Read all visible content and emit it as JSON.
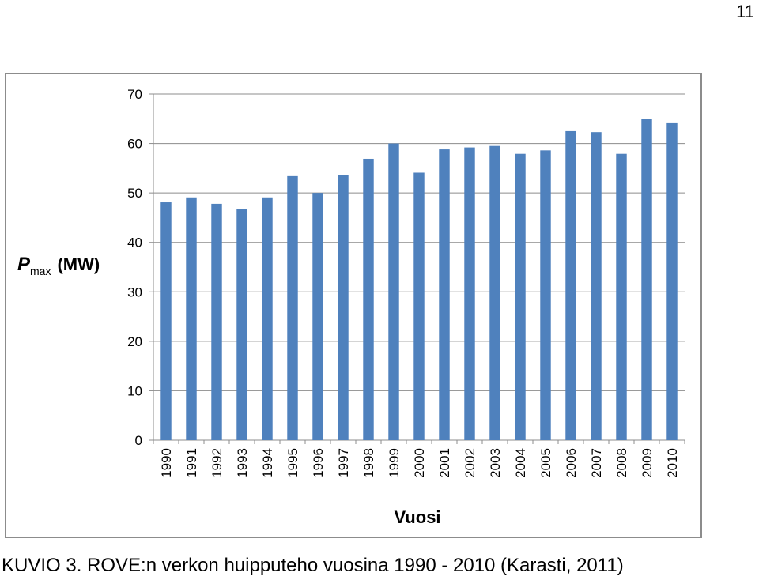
{
  "page_number": "11",
  "caption": "KUVIO 3. ROVE:n verkon huipputeho vuosina 1990 - 2010 (Karasti, 2011)",
  "chart_data": {
    "type": "bar",
    "title": "",
    "ylabel_main": "P",
    "ylabel_sub": "max",
    "ylabel_unit": "(MW)",
    "xlabel": "Vuosi",
    "ylim": [
      0,
      70
    ],
    "yticks": [
      0,
      10,
      20,
      30,
      40,
      50,
      60,
      70
    ],
    "grid": true,
    "legend": "none",
    "bar_color": "#4f81bd",
    "categories": [
      "1990",
      "1991",
      "1992",
      "1993",
      "1994",
      "1995",
      "1996",
      "1997",
      "1998",
      "1999",
      "2000",
      "2001",
      "2002",
      "2003",
      "2004",
      "2005",
      "2006",
      "2007",
      "2008",
      "2009",
      "2010"
    ],
    "values": [
      48.1,
      49.1,
      47.8,
      46.7,
      49.1,
      53.4,
      50.0,
      53.6,
      56.9,
      60.0,
      54.1,
      58.8,
      59.2,
      59.5,
      57.9,
      58.6,
      62.5,
      62.3,
      57.9,
      64.9,
      64.1
    ]
  }
}
